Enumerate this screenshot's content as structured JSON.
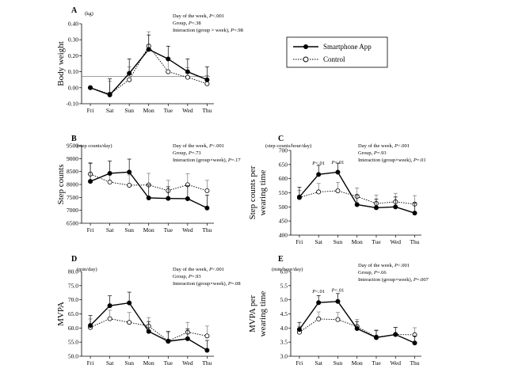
{
  "legend": {
    "app": "Smartphone App",
    "control": "Control"
  },
  "colors": {
    "ink": "#000000",
    "paper": "#ffffff",
    "refline": "#808080"
  },
  "chart_data": [
    {
      "id": "A",
      "type": "line",
      "letter": "A",
      "ylabel": "Body weight",
      "unit": "(kg)",
      "categories": [
        "Fri",
        "Sat",
        "Sun",
        "Mon",
        "Tue",
        "Wed",
        "Thu"
      ],
      "ylim": [
        -0.1,
        0.4
      ],
      "yticks": [
        -0.1,
        0.0,
        0.1,
        0.2,
        0.3,
        0.4
      ],
      "ytick_labels": [
        "-0.10",
        "0.00",
        "0.10",
        "0.20",
        "0.30",
        "0.40"
      ],
      "refline": 0.07,
      "series": [
        {
          "name": "Smartphone App",
          "values": [
            0.0,
            -0.045,
            0.09,
            0.24,
            0.18,
            0.1,
            0.05
          ],
          "err": [
            0.0,
            0.1,
            0.09,
            0.09,
            0.08,
            0.08,
            0.08
          ]
        },
        {
          "name": "Control",
          "values": [
            0.0,
            -0.04,
            0.05,
            0.26,
            0.1,
            0.065,
            0.025
          ],
          "err": [
            0.0,
            0.08,
            0.08,
            0.09,
            0.07,
            0.06,
            0.05
          ]
        }
      ],
      "annotations": {
        "line1": "Day of the week, ",
        "line1_p": "P",
        "line1_v": "<.001",
        "line2": "Group, ",
        "line2_p": "P",
        "line2_v": "=.38",
        "line3": "Interaction (group × week), ",
        "line3_p": "P",
        "line3_v": "=.98"
      },
      "plabels": []
    },
    {
      "id": "B",
      "type": "line",
      "letter": "B",
      "ylabel": "Step counts",
      "unit": "(step counts/day)",
      "categories": [
        "Fri",
        "Sat",
        "Sun",
        "Mon",
        "Tue",
        "Wed",
        "Thu"
      ],
      "ylim": [
        6500,
        9500
      ],
      "yticks": [
        6500,
        7000,
        7500,
        8000,
        8500,
        9000,
        9500
      ],
      "ytick_labels": [
        "6500",
        "7000",
        "7500",
        "8000",
        "8500",
        "9000",
        "9500"
      ],
      "series": [
        {
          "name": "Smartphone App",
          "values": [
            8120,
            8430,
            8480,
            7480,
            7460,
            7450,
            7090
          ],
          "err": [
            700,
            480,
            500,
            500,
            450,
            500,
            500
          ]
        },
        {
          "name": "Control",
          "values": [
            8400,
            8090,
            7970,
            7980,
            7760,
            7990,
            7760
          ],
          "err": [
            450,
            380,
            400,
            450,
            400,
            430,
            400
          ]
        }
      ],
      "annotations": {
        "line1": "Day of the week, ",
        "line1_p": "P",
        "line1_v": "<.001",
        "line2": "Group, ",
        "line2_p": "P",
        "line2_v": "=.73",
        "line3": "Interaction (group×week), ",
        "line3_p": "P",
        "line3_v": "=.17"
      },
      "plabels": []
    },
    {
      "id": "C",
      "type": "line",
      "letter": "C",
      "ylabel": "Step counts per",
      "ylabel2": "wearing time",
      "unit": "(step counts/hour/day)",
      "categories": [
        "Fri",
        "Sat",
        "Sun",
        "Mon",
        "Tue",
        "Wed",
        "Thu"
      ],
      "ylim": [
        400,
        700
      ],
      "yticks": [
        400,
        450,
        500,
        550,
        600,
        650,
        700
      ],
      "ytick_labels": [
        "400",
        "450",
        "500",
        "550",
        "600",
        "650",
        "700"
      ],
      "series": [
        {
          "name": "Smartphone App",
          "values": [
            535,
            615,
            623,
            508,
            497,
            500,
            478
          ],
          "err": [
            35,
            32,
            32,
            35,
            30,
            35,
            35
          ]
        },
        {
          "name": "Control",
          "values": [
            533,
            553,
            557,
            537,
            512,
            518,
            510
          ],
          "err": [
            25,
            30,
            30,
            30,
            30,
            30,
            30
          ]
        }
      ],
      "annotations": {
        "line1": "Day of the week, ",
        "line1_p": "P",
        "line1_v": "<.001",
        "line2": "Group, ",
        "line2_p": "P",
        "line2_v": "=.93",
        "line3": "Interaction (group×week), ",
        "line3_p": "P",
        "line3_v": "=.01"
      },
      "plabels": [
        {
          "cat": 1,
          "p": "P",
          "v": "<.01",
          "at": 650
        },
        {
          "cat": 2,
          "p": "P",
          "v": "<.01",
          "at": 652
        }
      ]
    },
    {
      "id": "D",
      "type": "line",
      "letter": "D",
      "ylabel": "MVPA",
      "unit": "(min/day)",
      "categories": [
        "Fri",
        "Sat",
        "Sun",
        "Mon",
        "Tue",
        "Wed",
        "Thu"
      ],
      "ylim": [
        50.0,
        80.0
      ],
      "yticks": [
        50.0,
        55.0,
        60.0,
        65.0,
        70.0,
        75.0,
        80.0
      ],
      "ytick_labels": [
        "50.0",
        "55.0",
        "60.0",
        "65.0",
        "70.0",
        "75.0",
        "80.0"
      ],
      "series": [
        {
          "name": "Smartphone App",
          "values": [
            60.9,
            67.9,
            68.9,
            58.8,
            55.3,
            56.2,
            52.1
          ],
          "err": [
            3.5,
            3.5,
            3.8,
            3.5,
            3.5,
            3.5,
            3.5
          ]
        },
        {
          "name": "Control",
          "values": [
            60.2,
            63.3,
            62.0,
            60.7,
            55.4,
            58.5,
            57.2
          ],
          "err": [
            3.0,
            3.0,
            3.5,
            3.0,
            3.0,
            3.5,
            3.5
          ]
        }
      ],
      "annotations": {
        "line1": "Day of the week, ",
        "line1_p": "P",
        "line1_v": "<.001",
        "line2": "Group, ",
        "line2_p": "P",
        "line2_v": "=.93",
        "line3": "Interaction (group×week), ",
        "line3_p": "P",
        "line3_v": "=.08"
      },
      "plabels": []
    },
    {
      "id": "E",
      "type": "line",
      "letter": "E",
      "ylabel": "MVPA per",
      "ylabel2": "wearing time",
      "unit": "(min/hour/day)",
      "categories": [
        "Fri",
        "Sat",
        "Sun",
        "Mon",
        "Tue",
        "Wed",
        "Thu"
      ],
      "ylim": [
        3.0,
        6.0
      ],
      "yticks": [
        3.0,
        3.5,
        4.0,
        4.5,
        5.0,
        5.5,
        6.0
      ],
      "ytick_labels": [
        "3.0",
        "3.5",
        "4.0",
        "4.5",
        "5.0",
        "5.5",
        "6.0"
      ],
      "series": [
        {
          "name": "Smartphone App",
          "values": [
            3.95,
            4.9,
            4.94,
            3.98,
            3.66,
            3.77,
            3.47
          ],
          "err": [
            0.25,
            0.25,
            0.28,
            0.25,
            0.25,
            0.25,
            0.25
          ]
        },
        {
          "name": "Control",
          "values": [
            3.85,
            4.32,
            4.3,
            4.05,
            3.68,
            3.77,
            3.76
          ],
          "err": [
            0.2,
            0.25,
            0.25,
            0.25,
            0.25,
            0.25,
            0.25
          ]
        }
      ],
      "annotations": {
        "line1": "Day of the week, ",
        "line1_p": "P",
        "line1_v": "<.001",
        "line2": "Group, ",
        "line2_p": "P",
        "line2_v": "=.66",
        "line3": "Interaction (group×week), ",
        "line3_p": "P",
        "line3_v": "=.007"
      },
      "plabels": [
        {
          "cat": 1,
          "p": "P",
          "v": "<.01",
          "at": 5.25
        },
        {
          "cat": 2,
          "p": "P",
          "v": "<.01",
          "at": 5.28
        }
      ]
    }
  ]
}
